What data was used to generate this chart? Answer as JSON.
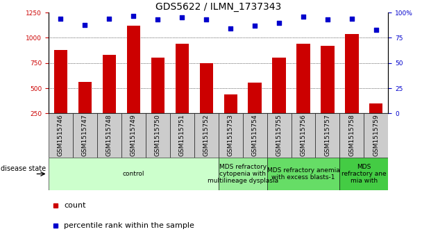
{
  "title": "GDS5622 / ILMN_1737343",
  "samples": [
    "GSM1515746",
    "GSM1515747",
    "GSM1515748",
    "GSM1515749",
    "GSM1515750",
    "GSM1515751",
    "GSM1515752",
    "GSM1515753",
    "GSM1515754",
    "GSM1515755",
    "GSM1515756",
    "GSM1515757",
    "GSM1515758",
    "GSM1515759"
  ],
  "counts": [
    880,
    560,
    830,
    1120,
    800,
    940,
    750,
    440,
    555,
    800,
    940,
    920,
    1040,
    350
  ],
  "percentiles": [
    94,
    88,
    94,
    97,
    93,
    95,
    93,
    84,
    87,
    90,
    96,
    93,
    94,
    83
  ],
  "bar_color": "#cc0000",
  "dot_color": "#0000cc",
  "ylim_left": [
    250,
    1250
  ],
  "ylim_right": [
    0,
    100
  ],
  "yticks_left": [
    250,
    500,
    750,
    1000,
    1250
  ],
  "yticks_right": [
    0,
    25,
    50,
    75,
    100
  ],
  "grid_values": [
    500,
    750,
    1000
  ],
  "disease_groups": [
    {
      "label": "control",
      "start": 0,
      "end": 7,
      "color": "#ccffcc"
    },
    {
      "label": "MDS refractory\ncytopenia with\nmultilineage dysplasia",
      "start": 7,
      "end": 9,
      "color": "#99ee99"
    },
    {
      "label": "MDS refractory anemia\nwith excess blasts-1",
      "start": 9,
      "end": 12,
      "color": "#66dd66"
    },
    {
      "label": "MDS\nrefractory ane\nmia with",
      "start": 12,
      "end": 14,
      "color": "#44cc44"
    }
  ],
  "disease_state_label": "disease state",
  "legend_count_label": "count",
  "legend_pct_label": "percentile rank within the sample",
  "bar_width": 0.55,
  "title_fontsize": 10,
  "tick_fontsize": 6.5,
  "label_fontsize": 8,
  "group_label_fontsize": 6.5
}
